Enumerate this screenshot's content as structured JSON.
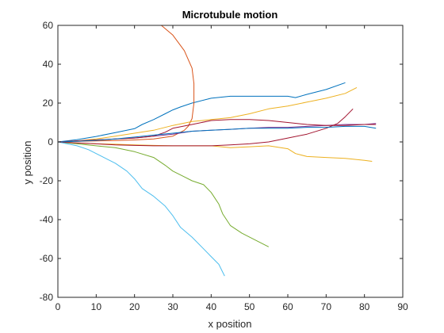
{
  "chart_data": {
    "type": "line",
    "title": "Microtubule motion",
    "xlabel": "x position",
    "ylabel": "y position",
    "xlim": [
      0,
      90
    ],
    "ylim": [
      -80,
      60
    ],
    "xticks": [
      0,
      10,
      20,
      30,
      40,
      50,
      60,
      70,
      80,
      90
    ],
    "yticks": [
      60,
      40,
      20,
      0,
      -20,
      -40,
      -60,
      -80
    ],
    "grid": false,
    "legend": "none",
    "series": [
      {
        "color": "#0072BD",
        "x": [
          0,
          5,
          10,
          15,
          20,
          22,
          25,
          28,
          30,
          32,
          35,
          40,
          45,
          50,
          55,
          60,
          62,
          65,
          70,
          75
        ],
        "y": [
          0,
          1.2,
          2.8,
          4.8,
          6.8,
          9,
          11.5,
          14.5,
          16.5,
          18,
          20,
          22.5,
          23.5,
          23.5,
          23.5,
          23.5,
          22.8,
          24.5,
          27,
          30.5
        ]
      },
      {
        "color": "#D95319",
        "x": [
          27,
          30,
          33,
          35,
          35.5,
          35.5,
          35,
          34,
          33,
          30,
          25,
          20,
          15,
          10,
          5,
          0
        ],
        "y": [
          60,
          55,
          47,
          38,
          30,
          20,
          12,
          8,
          6,
          3,
          1.5,
          1,
          0.7,
          0.5,
          0.3,
          0
        ]
      },
      {
        "color": "#EDB120",
        "x": [
          0,
          5,
          10,
          15,
          20,
          25,
          30,
          35,
          40,
          45,
          50,
          55,
          60,
          65,
          70,
          75,
          78
        ],
        "y": [
          0,
          0.5,
          1.5,
          3,
          4.5,
          6,
          8.5,
          10.5,
          11.5,
          12.5,
          14.5,
          17,
          18.5,
          20.5,
          22.5,
          25,
          28
        ]
      },
      {
        "color": "#EDB120",
        "x": [
          0,
          5,
          10,
          15,
          20,
          25,
          30,
          35,
          40,
          45,
          50,
          55,
          60,
          62,
          65,
          70,
          75,
          80,
          82
        ],
        "y": [
          0,
          -0.5,
          -1,
          -1.2,
          -1.5,
          -1.8,
          -2,
          -2,
          -2,
          -3,
          -2.5,
          -2,
          -3.5,
          -6,
          -7.5,
          -8,
          -8.5,
          -9.5,
          -10
        ]
      },
      {
        "color": "#7E2F8E",
        "x": [
          0,
          5,
          10,
          15,
          20,
          25,
          30,
          35,
          40,
          45,
          50,
          55,
          60,
          65,
          70,
          75,
          80,
          83
        ],
        "y": [
          0,
          0.5,
          1,
          1.5,
          2,
          3,
          4,
          5.5,
          6,
          6.5,
          7,
          7.5,
          7.5,
          8,
          8.5,
          9,
          9,
          9.5
        ]
      },
      {
        "color": "#77AC30",
        "x": [
          0,
          5,
          10,
          15,
          20,
          25,
          28,
          30,
          33,
          35,
          38,
          40,
          42,
          43,
          45,
          48,
          52,
          55
        ],
        "y": [
          0,
          -1,
          -2,
          -3,
          -5,
          -8,
          -12,
          -15,
          -18,
          -20,
          -22,
          -26,
          -32,
          -37,
          -43,
          -47,
          -51,
          -54
        ]
      },
      {
        "color": "#4DBEEE",
        "x": [
          0,
          5,
          8,
          10,
          13,
          15,
          18,
          20,
          22,
          25,
          28,
          30,
          32,
          35,
          38,
          40,
          42,
          43,
          43.5
        ],
        "y": [
          0,
          -2,
          -4,
          -6,
          -9,
          -11,
          -15,
          -19,
          -24,
          -28,
          -33,
          -38,
          -44,
          -49,
          -55,
          -59,
          -63,
          -67,
          -69
        ]
      },
      {
        "color": "#A2142F",
        "x": [
          0,
          5,
          10,
          15,
          20,
          25,
          30,
          35,
          40,
          45,
          50,
          55,
          60,
          65,
          70,
          73,
          75,
          77
        ],
        "y": [
          0,
          -0.5,
          -1,
          -1.5,
          -1.8,
          -2,
          -2,
          -2,
          -2,
          -1.5,
          -1,
          0,
          2,
          4,
          7,
          9.5,
          13,
          17
        ]
      },
      {
        "color": "#A2142F",
        "x": [
          0,
          5,
          10,
          15,
          20,
          25,
          28,
          30,
          35,
          40,
          45,
          50,
          55,
          60,
          65,
          70,
          75,
          80,
          83
        ],
        "y": [
          0,
          0.5,
          1,
          1.5,
          2,
          3,
          5,
          7,
          9,
          11,
          11.5,
          11.5,
          11,
          10,
          9,
          8.5,
          8.5,
          9,
          9
        ]
      },
      {
        "color": "#0072BD",
        "x": [
          0,
          5,
          10,
          15,
          20,
          25,
          30,
          35,
          40,
          45,
          50,
          55,
          60,
          65,
          70,
          75,
          80,
          83
        ],
        "y": [
          0,
          0.3,
          0.8,
          1.5,
          2.5,
          3.5,
          4.5,
          5.5,
          6,
          6.5,
          7,
          7,
          7,
          7.5,
          7.5,
          8,
          8,
          7
        ]
      }
    ]
  }
}
